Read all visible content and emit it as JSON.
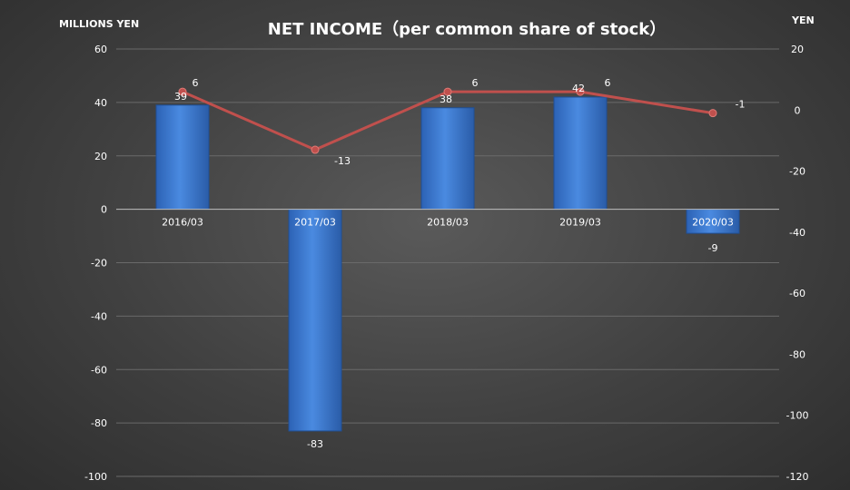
{
  "chart_data": {
    "type": "bar",
    "title": "NET INCOME（per common share of stock）",
    "categories": [
      "2016/03",
      "2017/03",
      "2018/03",
      "2019/03",
      "2020/03"
    ],
    "y_left": {
      "label": "MILLIONS YEN",
      "range": [
        -100,
        60
      ],
      "ticks": [
        60,
        40,
        20,
        0,
        -20,
        -40,
        -60,
        -80,
        -100
      ]
    },
    "y_right": {
      "label": "YEN",
      "range": [
        -120,
        20
      ],
      "ticks": [
        20,
        0,
        -20,
        -40,
        -60,
        -80,
        -100,
        -120
      ]
    },
    "grid": true,
    "series": [
      {
        "type": "bar",
        "axis": "left",
        "values": [
          39,
          -83,
          38,
          42,
          -9
        ],
        "labels": [
          "39",
          "-83",
          "38",
          "42",
          "-9"
        ],
        "color": "#3f7fd6"
      },
      {
        "type": "line",
        "axis": "right",
        "values": [
          6,
          -13,
          6,
          6,
          -1
        ],
        "labels": [
          "6",
          "-13",
          "6",
          "6",
          "-1"
        ],
        "color": "#c0504d"
      }
    ]
  }
}
